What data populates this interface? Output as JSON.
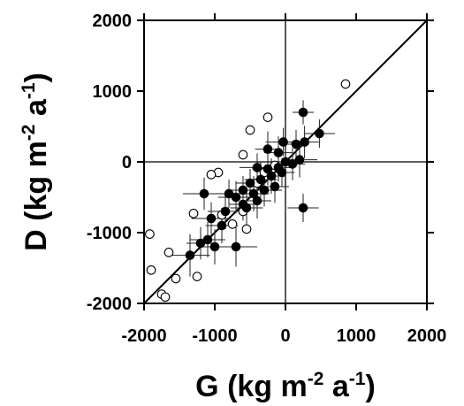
{
  "chart_data": {
    "type": "scatter",
    "xlabel": {
      "main": "G (kg m",
      "exp1": "-2",
      "mid": " a",
      "exp2": "-1",
      "end": ")"
    },
    "ylabel": {
      "main": "D (kg m",
      "exp1": "-2",
      "mid": " a",
      "exp2": "-1",
      "end": ")"
    },
    "xlim": [
      -2000,
      2000
    ],
    "ylim": [
      -2000,
      2000
    ],
    "x_ticks": [
      -2000,
      -1000,
      0,
      1000,
      2000
    ],
    "y_ticks": [
      -2000,
      -1000,
      0,
      1000,
      2000
    ],
    "x_tick_labels": [
      "-2000",
      "-1000",
      "0",
      "1000",
      "2000"
    ],
    "y_tick_labels": [
      "-2000",
      "-1000",
      "0",
      "1000",
      "2000"
    ],
    "reference_lines": [
      "x=0",
      "y=0",
      "1:1 line"
    ],
    "grid": false,
    "colors": {
      "axis": "#000000",
      "filled_marker": "#000000",
      "open_marker_fill": "#ffffff",
      "error_bar": "#222222"
    },
    "series": [
      {
        "marker": "filled-circle",
        "points": [
          {
            "x": 250,
            "y": 700,
            "xerr": 150,
            "yerr": 170
          },
          {
            "x": 480,
            "y": 400,
            "xerr": 220,
            "yerr": 200
          },
          {
            "x": 270,
            "y": 280,
            "xerr": 200,
            "yerr": 230
          },
          {
            "x": 150,
            "y": 250,
            "xerr": 180,
            "yerr": 200
          },
          {
            "x": -30,
            "y": 280,
            "xerr": 250,
            "yerr": 200
          },
          {
            "x": -250,
            "y": 180,
            "xerr": 180,
            "yerr": 250
          },
          {
            "x": -100,
            "y": 130,
            "xerr": 200,
            "yerr": 230
          },
          {
            "x": 200,
            "y": 30,
            "xerr": 250,
            "yerr": 250
          },
          {
            "x": 100,
            "y": -30,
            "xerr": 180,
            "yerr": 230
          },
          {
            "x": -100,
            "y": -80,
            "xerr": 200,
            "yerr": 200
          },
          {
            "x": -250,
            "y": -100,
            "xerr": 220,
            "yerr": 230
          },
          {
            "x": -400,
            "y": -80,
            "xerr": 250,
            "yerr": 200
          },
          {
            "x": -200,
            "y": -200,
            "xerr": 200,
            "yerr": 250
          },
          {
            "x": -350,
            "y": -250,
            "xerr": 230,
            "yerr": 250
          },
          {
            "x": -500,
            "y": -300,
            "xerr": 200,
            "yerr": 200
          },
          {
            "x": -300,
            "y": -400,
            "xerr": 250,
            "yerr": 230
          },
          {
            "x": -450,
            "y": -450,
            "xerr": 220,
            "yerr": 250
          },
          {
            "x": -600,
            "y": -400,
            "xerr": 230,
            "yerr": 200
          },
          {
            "x": -400,
            "y": -550,
            "xerr": 200,
            "yerr": 250
          },
          {
            "x": -700,
            "y": -500,
            "xerr": 250,
            "yerr": 230
          },
          {
            "x": -550,
            "y": -650,
            "xerr": 230,
            "yerr": 250
          },
          {
            "x": -800,
            "y": -450,
            "xerr": 220,
            "yerr": 200
          },
          {
            "x": -850,
            "y": -700,
            "xerr": 250,
            "yerr": 250
          },
          {
            "x": -1050,
            "y": -800,
            "xerr": 280,
            "yerr": 230
          },
          {
            "x": -1150,
            "y": -450,
            "xerr": 300,
            "yerr": 230
          },
          {
            "x": -1100,
            "y": -1100,
            "xerr": 250,
            "yerr": 250
          },
          {
            "x": -1000,
            "y": -1200,
            "xerr": 230,
            "yerr": 250
          },
          {
            "x": -1350,
            "y": -1320,
            "xerr": 280,
            "yerr": 300
          },
          {
            "x": -1200,
            "y": -1150,
            "xerr": 200,
            "yerr": 230
          },
          {
            "x": -700,
            "y": -1200,
            "xerr": 300,
            "yerr": 280
          },
          {
            "x": 250,
            "y": -650,
            "xerr": 220,
            "yerr": 200
          },
          {
            "x": -150,
            "y": -350,
            "xerr": 200,
            "yerr": 230
          },
          {
            "x": -50,
            "y": -150,
            "xerr": 180,
            "yerr": 200
          },
          {
            "x": 0,
            "y": 0,
            "xerr": 200,
            "yerr": 200
          },
          {
            "x": -600,
            "y": -600,
            "xerr": 200,
            "yerr": 230
          },
          {
            "x": -900,
            "y": -900,
            "xerr": 230,
            "yerr": 250
          }
        ]
      },
      {
        "marker": "open-circle",
        "points": [
          {
            "x": 850,
            "y": 1100
          },
          {
            "x": -250,
            "y": 630
          },
          {
            "x": -500,
            "y": 450
          },
          {
            "x": -600,
            "y": 100
          },
          {
            "x": -950,
            "y": -150
          },
          {
            "x": -1050,
            "y": -180
          },
          {
            "x": -1300,
            "y": -730
          },
          {
            "x": -1250,
            "y": -1620
          },
          {
            "x": -1550,
            "y": -1650
          },
          {
            "x": -1650,
            "y": -1280
          },
          {
            "x": -1920,
            "y": -1020
          },
          {
            "x": -1900,
            "y": -1530
          },
          {
            "x": -1750,
            "y": -1870
          },
          {
            "x": -1700,
            "y": -1910
          },
          {
            "x": -900,
            "y": -750
          },
          {
            "x": -750,
            "y": -880
          },
          {
            "x": -600,
            "y": -700
          },
          {
            "x": -400,
            "y": -300
          },
          {
            "x": -300,
            "y": -150
          },
          {
            "x": -150,
            "y": -50
          },
          {
            "x": -550,
            "y": -950
          }
        ]
      }
    ]
  }
}
